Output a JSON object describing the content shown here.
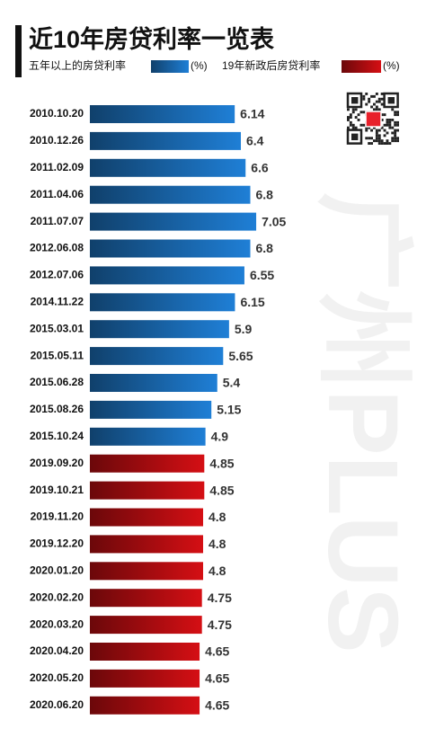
{
  "chart_data": {
    "type": "bar",
    "orientation": "horizontal",
    "title": "近10年房贷利率一览表",
    "unit": "(%)",
    "watermark": "广州PLUS",
    "categories": [
      "2010.10.20",
      "2010.12.26",
      "2011.02.09",
      "2011.04.06",
      "2011.07.07",
      "2012.06.08",
      "2012.07.06",
      "2014.11.22",
      "2015.03.01",
      "2015.05.11",
      "2015.06.28",
      "2015.08.26",
      "2015.10.24",
      "2019.09.20",
      "2019.10.21",
      "2019.11.20",
      "2019.12.20",
      "2020.01.20",
      "2020.02.20",
      "2020.03.20",
      "2020.04.20",
      "2020.05.20",
      "2020.06.20"
    ],
    "series": [
      {
        "name": "五年以上的房贷利率",
        "color": "#1f7fd6",
        "values": [
          6.14,
          6.4,
          6.6,
          6.8,
          7.05,
          6.8,
          6.55,
          6.15,
          5.9,
          5.65,
          5.4,
          5.15,
          4.9,
          null,
          null,
          null,
          null,
          null,
          null,
          null,
          null,
          null,
          null
        ]
      },
      {
        "name": "19年新政后房贷利率",
        "color": "#d50f14",
        "values": [
          null,
          null,
          null,
          null,
          null,
          null,
          null,
          null,
          null,
          null,
          null,
          null,
          null,
          4.85,
          4.85,
          4.8,
          4.8,
          4.8,
          4.75,
          4.75,
          4.65,
          4.65,
          4.65
        ]
      }
    ]
  }
}
